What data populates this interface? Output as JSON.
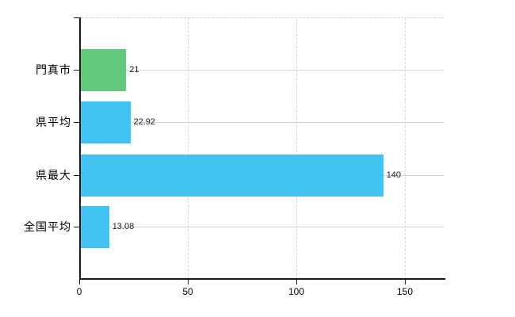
{
  "chart_data": {
    "type": "bar",
    "orientation": "horizontal",
    "title": "",
    "xlabel": "",
    "ylabel": "",
    "categories": [
      "門真市",
      "県平均",
      "県最大",
      "全国平均"
    ],
    "values": [
      21,
      22.92,
      140,
      13.08
    ],
    "value_labels": [
      "21",
      "22.92",
      "140",
      "13.08"
    ],
    "bar_colors": [
      "#62c97d",
      "#41c2f0",
      "#41c2f0",
      "#41c2f0"
    ],
    "x_ticks": [
      "0",
      "50",
      "100",
      "150"
    ],
    "xlim": [
      0,
      168
    ],
    "grid": true,
    "legend": false
  },
  "colors": {
    "bar_green": "#62c97d",
    "bar_blue": "#41c2f0",
    "axis": "#1a1a1a",
    "h_gridline": "#cfdacf",
    "v_gridline": "#d8d5d8",
    "background": "#ffffff",
    "text": "#000000"
  }
}
